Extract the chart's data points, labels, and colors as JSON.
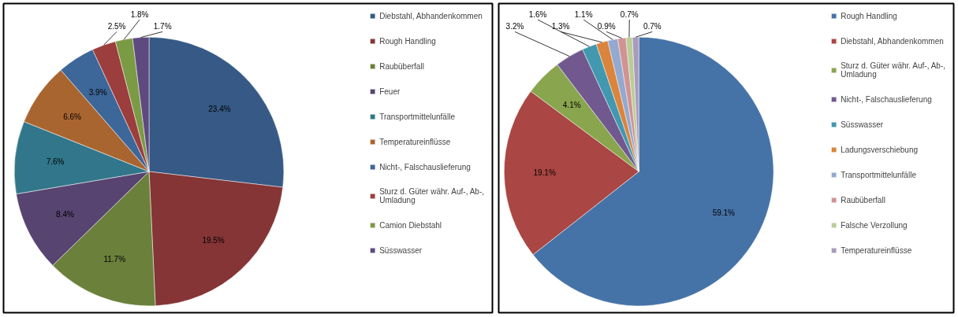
{
  "chart_data": [
    {
      "type": "pie",
      "categories": [
        "Diebstahl, Abhandenkommen",
        "Rough Handling",
        "Raubüberfall",
        "Feuer",
        "Transportmittelunfälle",
        "Temperatureinflüsse",
        "Nicht-, Falschauslieferung",
        "Sturz d. Güter währ. Auf-, Ab-, Umladung",
        "Camion Diebstahl",
        "Süsswasser"
      ],
      "values": [
        23.4,
        19.5,
        11.7,
        8.4,
        7.6,
        6.6,
        3.9,
        2.5,
        1.8,
        1.7
      ],
      "value_labels": [
        "23.4%",
        "19.5%",
        "11.7%",
        "8.4%",
        "7.6%",
        "6.6%",
        "3.9%",
        "2.5%",
        "1.8%",
        "1.7%"
      ],
      "colors": [
        "#365985",
        "#853536",
        "#6B803B",
        "#574470",
        "#31768A",
        "#A96530",
        "#3D6699",
        "#9B3E3D",
        "#7B9A44",
        "#5F4A7F"
      ],
      "legend": "right"
    },
    {
      "type": "pie",
      "categories": [
        "Rough Handling",
        "Diebstahl, Abhandenkommen",
        "Sturz d. Güter währ. Auf-, Ab-, Umladung",
        "Nicht-, Falschauslieferung",
        "Süsswasser",
        "Ladungsverschiebung",
        "Transportmittelunfälle",
        "Raubüberfall",
        "Falsche Verzollung",
        "Temperatureinflüsse"
      ],
      "values": [
        59.1,
        19.1,
        4.1,
        3.2,
        1.6,
        1.3,
        1.1,
        0.9,
        0.7,
        0.7
      ],
      "value_labels": [
        "59.1%",
        "19.1%",
        "4.1%",
        "3.2%",
        "1.6%",
        "1.3%",
        "1.1%",
        "0.9%",
        "0.7%",
        "0.7%"
      ],
      "colors": [
        "#4573A7",
        "#AA4643",
        "#89A54E",
        "#71588F",
        "#4198AF",
        "#DB843D",
        "#93A9CF",
        "#D19392",
        "#B9CD96",
        "#A99BBD"
      ],
      "legend": "right"
    }
  ]
}
